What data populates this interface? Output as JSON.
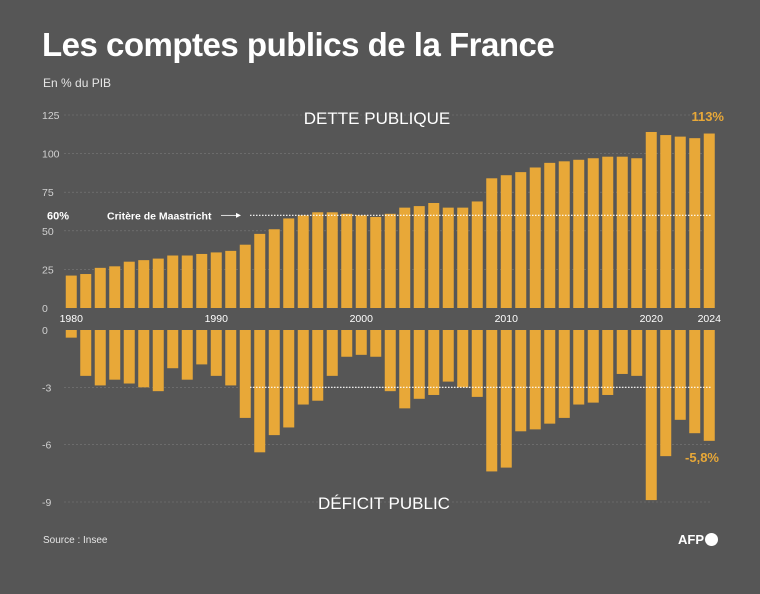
{
  "title": "Les comptes publics de la France",
  "subtitle": "En % du PIB",
  "source": "Source : Insee",
  "logo": "AFP",
  "colors": {
    "bar": "#E8A838",
    "background": "#565656",
    "highlight": "#E8A838",
    "text": "#ffffff",
    "grid": "#7a7a7a"
  },
  "chart_data": [
    {
      "type": "bar",
      "title": "DETTE PUBLIQUE",
      "ylabel": "En % du PIB",
      "ylim": [
        0,
        125
      ],
      "yticks": [
        0,
        25,
        50,
        75,
        100,
        125
      ],
      "x": [
        1980,
        1981,
        1982,
        1983,
        1984,
        1985,
        1986,
        1987,
        1988,
        1989,
        1990,
        1991,
        1992,
        1993,
        1994,
        1995,
        1996,
        1997,
        1998,
        1999,
        2000,
        2001,
        2002,
        2003,
        2004,
        2005,
        2006,
        2007,
        2008,
        2009,
        2010,
        2011,
        2012,
        2013,
        2014,
        2015,
        2016,
        2017,
        2018,
        2019,
        2020,
        2021,
        2022,
        2023,
        2024
      ],
      "values": [
        21,
        22,
        26,
        27,
        30,
        31,
        32,
        34,
        34,
        35,
        36,
        37,
        41,
        48,
        51,
        58,
        60,
        62,
        62,
        61,
        60,
        59,
        61,
        65,
        66,
        68,
        65,
        65,
        69,
        84,
        86,
        88,
        91,
        94,
        95,
        96,
        97,
        98,
        98,
        97,
        114,
        112,
        111,
        110,
        113
      ],
      "reference": {
        "value": 60,
        "label": "Critère de Maastricht",
        "value_label": "60%"
      },
      "annotation": "113%"
    },
    {
      "type": "bar",
      "title": "DÉFICIT PUBLIC",
      "ylim": [
        -9,
        0
      ],
      "yticks": [
        0,
        -3,
        -6,
        -9
      ],
      "x": [
        1980,
        1981,
        1982,
        1983,
        1984,
        1985,
        1986,
        1987,
        1988,
        1989,
        1990,
        1991,
        1992,
        1993,
        1994,
        1995,
        1996,
        1997,
        1998,
        1999,
        2000,
        2001,
        2002,
        2003,
        2004,
        2005,
        2006,
        2007,
        2008,
        2009,
        2010,
        2011,
        2012,
        2013,
        2014,
        2015,
        2016,
        2017,
        2018,
        2019,
        2020,
        2021,
        2022,
        2023,
        2024
      ],
      "values": [
        -0.4,
        -2.4,
        -2.9,
        -2.6,
        -2.8,
        -3.0,
        -3.2,
        -2.0,
        -2.6,
        -1.8,
        -2.4,
        -2.9,
        -4.6,
        -6.4,
        -5.5,
        -5.1,
        -3.9,
        -3.7,
        -2.4,
        -1.4,
        -1.3,
        -1.4,
        -3.2,
        -4.1,
        -3.6,
        -3.4,
        -2.7,
        -3.0,
        -3.5,
        -7.4,
        -7.2,
        -5.3,
        -5.2,
        -4.9,
        -4.6,
        -3.9,
        -3.8,
        -3.4,
        -2.3,
        -2.4,
        -8.9,
        -6.6,
        -4.7,
        -5.4,
        -5.8
      ],
      "reference": {
        "value": -3
      },
      "annotation": "-5,8%"
    }
  ],
  "year_labels": [
    "1980",
    "1990",
    "2000",
    "2010",
    "2020",
    "2024"
  ]
}
